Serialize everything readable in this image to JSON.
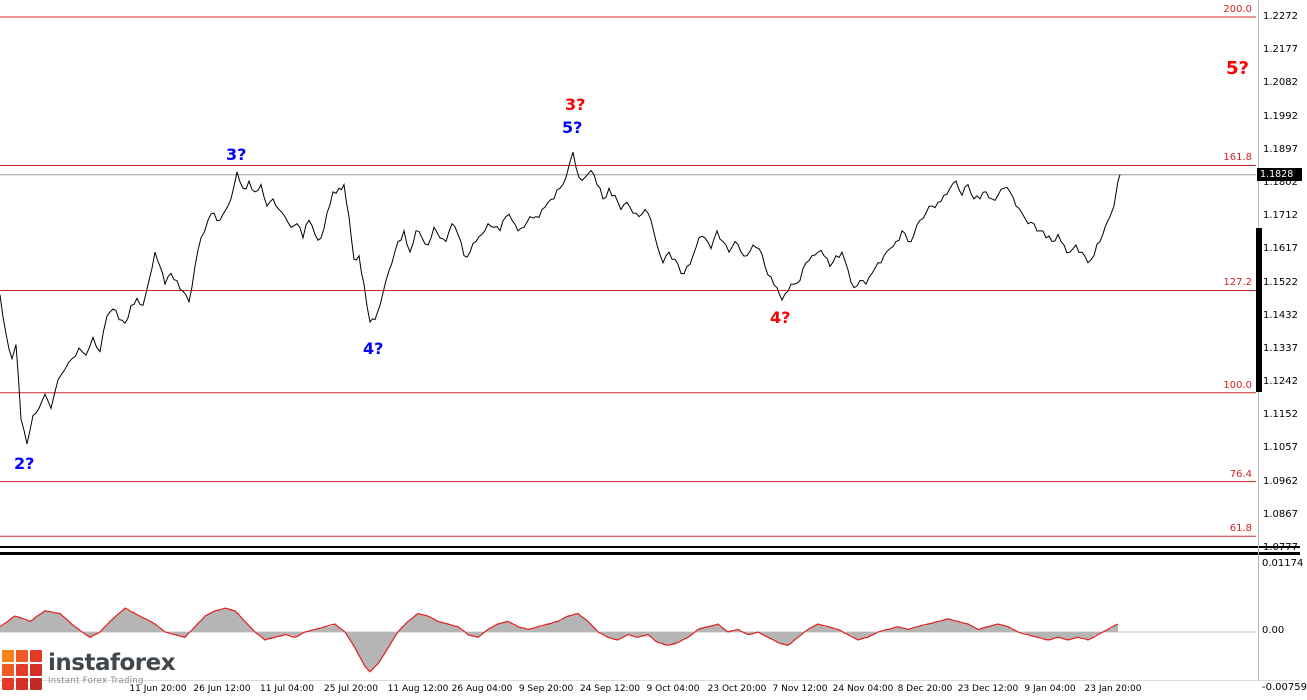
{
  "brand": {
    "name": "instaforex",
    "tagline": "Instant Forex Trading",
    "icon_colors": [
      "#f5821f",
      "#ef5b25",
      "#e43a28",
      "#ef5b25",
      "#e43a28",
      "#d42f26",
      "#e43a28",
      "#d42f26",
      "#bf2a24"
    ]
  },
  "colors": {
    "fib_line": "#cc2a2a",
    "fib_label": "#d32424",
    "current_price_line": "#9a9a9a",
    "price_line": "#000000",
    "oscillator_fill": "#b5b5b5",
    "oscillator_line": "#e01f1f",
    "badge_bg": "#000000",
    "badge_text": "#ffffff",
    "wave_blue": "#0000ff",
    "wave_red": "#ff0000"
  },
  "chart_data": {
    "type": "line",
    "title": "",
    "y_axis": {
      "min": 1.0777,
      "max": 1.2272,
      "labels": [
        "1.2272",
        "1.2177",
        "1.2082",
        "1.1992",
        "1.1897",
        "1.1802",
        "1.1712",
        "1.1617",
        "1.1522",
        "1.1432",
        "1.1337",
        "1.1242",
        "1.1152",
        "1.1057",
        "1.0962",
        "1.0867",
        "1.0777"
      ]
    },
    "x_axis": {
      "labels": [
        {
          "text": "11 Jun 20:00",
          "x": 158
        },
        {
          "text": "26 Jun 12:00",
          "x": 222
        },
        {
          "text": "11 Jul 04:00",
          "x": 287
        },
        {
          "text": "25 Jul 20:00",
          "x": 351
        },
        {
          "text": "11 Aug 12:00",
          "x": 418
        },
        {
          "text": "26 Aug 04:00",
          "x": 482
        },
        {
          "text": "9 Sep 20:00",
          "x": 546
        },
        {
          "text": "24 Sep 12:00",
          "x": 610
        },
        {
          "text": "9 Oct 04:00",
          "x": 673
        },
        {
          "text": "23 Oct 20:00",
          "x": 737
        },
        {
          "text": "7 Nov 12:00",
          "x": 800
        },
        {
          "text": "24 Nov 04:00",
          "x": 863
        },
        {
          "text": "8 Dec 20:00",
          "x": 925
        },
        {
          "text": "23 Dec 12:00",
          "x": 988
        },
        {
          "text": "9 Jan 04:00",
          "x": 1050
        },
        {
          "text": "23 Jan 20:00",
          "x": 1113
        }
      ]
    },
    "current_price": 1.1828,
    "current_price_label": "1.1828",
    "fib_levels": [
      {
        "label": "200.0",
        "price": 1.2272
      },
      {
        "label": "161.8",
        "price": 1.1854
      },
      {
        "label": "127.2",
        "price": 1.1502
      },
      {
        "label": "100.0",
        "price": 1.1214
      },
      {
        "label": "76.4",
        "price": 1.0964
      },
      {
        "label": "61.8",
        "price": 1.081
      }
    ],
    "wave_annotations": [
      {
        "text": "2?",
        "color": "#0000ff",
        "x": 14,
        "y": 454,
        "size": 16
      },
      {
        "text": "3?",
        "color": "#0000ff",
        "x": 226,
        "y": 145,
        "size": 16
      },
      {
        "text": "4?",
        "color": "#0000ff",
        "x": 363,
        "y": 339,
        "size": 16
      },
      {
        "text": "5?",
        "color": "#0000ff",
        "x": 562,
        "y": 118,
        "size": 16
      },
      {
        "text": "3?",
        "color": "#ff0000",
        "x": 565,
        "y": 95,
        "size": 16
      },
      {
        "text": "4?",
        "color": "#ff0000",
        "x": 770,
        "y": 308,
        "size": 16
      },
      {
        "text": "5?",
        "color": "#ff0000",
        "x": 1226,
        "y": 58,
        "size": 18
      }
    ],
    "price_series": [
      [
        0,
        1.149
      ],
      [
        6,
        1.138
      ],
      [
        12,
        1.131
      ],
      [
        16,
        1.135
      ],
      [
        21,
        1.114
      ],
      [
        27,
        1.107
      ],
      [
        33,
        1.115
      ],
      [
        39,
        1.117
      ],
      [
        45,
        1.121
      ],
      [
        51,
        1.117
      ],
      [
        58,
        1.125
      ],
      [
        65,
        1.128
      ],
      [
        72,
        1.131
      ],
      [
        79,
        1.134
      ],
      [
        86,
        1.132
      ],
      [
        93,
        1.137
      ],
      [
        100,
        1.133
      ],
      [
        107,
        1.143
      ],
      [
        113,
        1.145
      ],
      [
        119,
        1.142
      ],
      [
        125,
        1.141
      ],
      [
        131,
        1.146
      ],
      [
        137,
        1.148
      ],
      [
        143,
        1.146
      ],
      [
        149,
        1.153
      ],
      [
        155,
        1.161
      ],
      [
        160,
        1.157
      ],
      [
        165,
        1.152
      ],
      [
        171,
        1.155
      ],
      [
        177,
        1.153
      ],
      [
        183,
        1.15
      ],
      [
        189,
        1.147
      ],
      [
        195,
        1.157
      ],
      [
        201,
        1.165
      ],
      [
        208,
        1.17
      ],
      [
        214,
        1.172
      ],
      [
        220,
        1.17
      ],
      [
        226,
        1.173
      ],
      [
        231,
        1.176
      ],
      [
        237,
        1.1836
      ],
      [
        243,
        1.179
      ],
      [
        249,
        1.181
      ],
      [
        255,
        1.178
      ],
      [
        261,
        1.18
      ],
      [
        267,
        1.174
      ],
      [
        273,
        1.176
      ],
      [
        279,
        1.173
      ],
      [
        285,
        1.171
      ],
      [
        291,
        1.168
      ],
      [
        297,
        1.169
      ],
      [
        303,
        1.165
      ],
      [
        309,
        1.17
      ],
      [
        315,
        1.166
      ],
      [
        321,
        1.165
      ],
      [
        327,
        1.172
      ],
      [
        333,
        1.178
      ],
      [
        339,
        1.179
      ],
      [
        344,
        1.18
      ],
      [
        349,
        1.171
      ],
      [
        354,
        1.159
      ],
      [
        359,
        1.16
      ],
      [
        364,
        1.152
      ],
      [
        370,
        1.1413
      ],
      [
        375,
        1.142
      ],
      [
        380,
        1.146
      ],
      [
        386,
        1.153
      ],
      [
        392,
        1.158
      ],
      [
        398,
        1.164
      ],
      [
        404,
        1.167
      ],
      [
        410,
        1.161
      ],
      [
        416,
        1.167
      ],
      [
        422,
        1.165
      ],
      [
        428,
        1.163
      ],
      [
        434,
        1.168
      ],
      [
        440,
        1.165
      ],
      [
        446,
        1.164
      ],
      [
        452,
        1.169
      ],
      [
        458,
        1.166
      ],
      [
        464,
        1.16
      ],
      [
        470,
        1.161
      ],
      [
        476,
        1.164
      ],
      [
        482,
        1.166
      ],
      [
        488,
        1.169
      ],
      [
        494,
        1.168
      ],
      [
        500,
        1.167
      ],
      [
        506,
        1.171
      ],
      [
        512,
        1.17
      ],
      [
        518,
        1.167
      ],
      [
        524,
        1.168
      ],
      [
        530,
        1.171
      ],
      [
        536,
        1.171
      ],
      [
        542,
        1.173
      ],
      [
        548,
        1.175
      ],
      [
        554,
        1.176
      ],
      [
        560,
        1.179
      ],
      [
        566,
        1.182
      ],
      [
        573,
        1.1892
      ],
      [
        579,
        1.182
      ],
      [
        585,
        1.182
      ],
      [
        591,
        1.184
      ],
      [
        597,
        1.18
      ],
      [
        603,
        1.176
      ],
      [
        609,
        1.179
      ],
      [
        615,
        1.177
      ],
      [
        621,
        1.173
      ],
      [
        627,
        1.175
      ],
      [
        633,
        1.172
      ],
      [
        639,
        1.171
      ],
      [
        645,
        1.173
      ],
      [
        651,
        1.17
      ],
      [
        657,
        1.163
      ],
      [
        663,
        1.158
      ],
      [
        669,
        1.161
      ],
      [
        675,
        1.159
      ],
      [
        681,
        1.155
      ],
      [
        687,
        1.157
      ],
      [
        693,
        1.16
      ],
      [
        699,
        1.165
      ],
      [
        705,
        1.165
      ],
      [
        711,
        1.162
      ],
      [
        717,
        1.167
      ],
      [
        723,
        1.164
      ],
      [
        729,
        1.161
      ],
      [
        735,
        1.164
      ],
      [
        741,
        1.161
      ],
      [
        747,
        1.16
      ],
      [
        753,
        1.163
      ],
      [
        759,
        1.162
      ],
      [
        765,
        1.157
      ],
      [
        771,
        1.154
      ],
      [
        777,
        1.151
      ],
      [
        782,
        1.1475
      ],
      [
        788,
        1.15
      ],
      [
        794,
        1.152
      ],
      [
        800,
        1.153
      ],
      [
        806,
        1.158
      ],
      [
        812,
        1.16
      ],
      [
        818,
        1.161
      ],
      [
        824,
        1.16
      ],
      [
        830,
        1.157
      ],
      [
        836,
        1.16
      ],
      [
        842,
        1.161
      ],
      [
        848,
        1.156
      ],
      [
        854,
        1.151
      ],
      [
        860,
        1.153
      ],
      [
        866,
        1.152
      ],
      [
        872,
        1.155
      ],
      [
        878,
        1.158
      ],
      [
        884,
        1.16
      ],
      [
        890,
        1.162
      ],
      [
        896,
        1.164
      ],
      [
        902,
        1.167
      ],
      [
        908,
        1.164
      ],
      [
        914,
        1.166
      ],
      [
        920,
        1.17
      ],
      [
        926,
        1.172
      ],
      [
        932,
        1.174
      ],
      [
        938,
        1.175
      ],
      [
        944,
        1.177
      ],
      [
        950,
        1.179
      ],
      [
        956,
        1.181
      ],
      [
        962,
        1.177
      ],
      [
        968,
        1.18
      ],
      [
        974,
        1.176
      ],
      [
        980,
        1.176
      ],
      [
        986,
        1.178
      ],
      [
        992,
        1.176
      ],
      [
        998,
        1.177
      ],
      [
        1004,
        1.179
      ],
      [
        1010,
        1.178
      ],
      [
        1016,
        1.174
      ],
      [
        1022,
        1.172
      ],
      [
        1028,
        1.169
      ],
      [
        1034,
        1.169
      ],
      [
        1040,
        1.167
      ],
      [
        1046,
        1.165
      ],
      [
        1052,
        1.164
      ],
      [
        1058,
        1.166
      ],
      [
        1064,
        1.163
      ],
      [
        1070,
        1.161
      ],
      [
        1076,
        1.163
      ],
      [
        1082,
        1.161
      ],
      [
        1088,
        1.158
      ],
      [
        1094,
        1.16
      ],
      [
        1100,
        1.164
      ],
      [
        1105,
        1.168
      ],
      [
        1110,
        1.171
      ],
      [
        1114,
        1.174
      ],
      [
        1118,
        1.181
      ],
      [
        1120,
        1.1828
      ]
    ],
    "oscillator": {
      "scale_labels": {
        "max": "0.01174",
        "zero": "0.00",
        "min": "-0.00759"
      },
      "series": [
        [
          0,
          0.001
        ],
        [
          15,
          0.003
        ],
        [
          30,
          0.002
        ],
        [
          45,
          0.004
        ],
        [
          60,
          0.0035
        ],
        [
          75,
          0.001
        ],
        [
          90,
          -0.001
        ],
        [
          100,
          0.0
        ],
        [
          110,
          0.002
        ],
        [
          125,
          0.0045
        ],
        [
          140,
          0.003
        ],
        [
          155,
          0.0015
        ],
        [
          165,
          0.0
        ],
        [
          175,
          -0.0005
        ],
        [
          185,
          -0.001
        ],
        [
          195,
          0.001
        ],
        [
          205,
          0.003
        ],
        [
          215,
          0.004
        ],
        [
          225,
          0.0045
        ],
        [
          235,
          0.004
        ],
        [
          245,
          0.002
        ],
        [
          255,
          0.0
        ],
        [
          265,
          -0.0015
        ],
        [
          275,
          -0.001
        ],
        [
          285,
          -0.0005
        ],
        [
          295,
          -0.001
        ],
        [
          305,
          0.0
        ],
        [
          315,
          0.0005
        ],
        [
          325,
          0.001
        ],
        [
          335,
          0.0015
        ],
        [
          345,
          0.0
        ],
        [
          355,
          -0.003
        ],
        [
          365,
          -0.0065
        ],
        [
          370,
          -0.0075
        ],
        [
          378,
          -0.006
        ],
        [
          388,
          -0.003
        ],
        [
          398,
          0.0
        ],
        [
          408,
          0.002
        ],
        [
          418,
          0.0035
        ],
        [
          428,
          0.003
        ],
        [
          438,
          0.002
        ],
        [
          448,
          0.0015
        ],
        [
          458,
          0.001
        ],
        [
          468,
          -0.0005
        ],
        [
          478,
          -0.001
        ],
        [
          488,
          0.0005
        ],
        [
          498,
          0.0015
        ],
        [
          508,
          0.002
        ],
        [
          518,
          0.001
        ],
        [
          528,
          0.0005
        ],
        [
          538,
          0.001
        ],
        [
          548,
          0.0015
        ],
        [
          558,
          0.002
        ],
        [
          568,
          0.003
        ],
        [
          578,
          0.0035
        ],
        [
          588,
          0.002
        ],
        [
          598,
          0.0
        ],
        [
          608,
          -0.001
        ],
        [
          618,
          -0.0015
        ],
        [
          628,
          -0.0005
        ],
        [
          638,
          -0.001
        ],
        [
          648,
          -0.0005
        ],
        [
          658,
          -0.002
        ],
        [
          668,
          -0.0025
        ],
        [
          678,
          -0.002
        ],
        [
          688,
          -0.001
        ],
        [
          698,
          0.0005
        ],
        [
          708,
          0.001
        ],
        [
          718,
          0.0015
        ],
        [
          728,
          0.0
        ],
        [
          738,
          0.0005
        ],
        [
          748,
          -0.0005
        ],
        [
          758,
          0.0
        ],
        [
          768,
          -0.001
        ],
        [
          778,
          -0.002
        ],
        [
          788,
          -0.0025
        ],
        [
          798,
          -0.001
        ],
        [
          808,
          0.0005
        ],
        [
          818,
          0.0015
        ],
        [
          828,
          0.001
        ],
        [
          838,
          0.0005
        ],
        [
          848,
          -0.0005
        ],
        [
          858,
          -0.0015
        ],
        [
          868,
          -0.001
        ],
        [
          878,
          0.0
        ],
        [
          888,
          0.0005
        ],
        [
          898,
          0.001
        ],
        [
          908,
          0.0005
        ],
        [
          918,
          0.001
        ],
        [
          928,
          0.0015
        ],
        [
          938,
          0.002
        ],
        [
          948,
          0.0025
        ],
        [
          958,
          0.002
        ],
        [
          968,
          0.0015
        ],
        [
          978,
          0.0005
        ],
        [
          988,
          0.001
        ],
        [
          998,
          0.0015
        ],
        [
          1008,
          0.001
        ],
        [
          1018,
          0.0
        ],
        [
          1028,
          -0.0005
        ],
        [
          1038,
          -0.001
        ],
        [
          1048,
          -0.0015
        ],
        [
          1058,
          -0.001
        ],
        [
          1068,
          -0.0015
        ],
        [
          1078,
          -0.001
        ],
        [
          1088,
          -0.0015
        ],
        [
          1098,
          -0.0005
        ],
        [
          1108,
          0.0005
        ],
        [
          1118,
          0.0015
        ]
      ]
    }
  }
}
